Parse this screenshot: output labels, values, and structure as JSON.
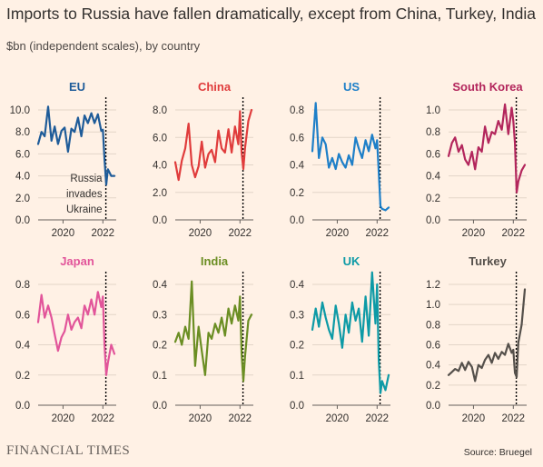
{
  "header": {
    "title": "Imports to Russia have fallen dramatically, except from China, Turkey, India",
    "subtitle": "$bn (independent scales), by country"
  },
  "footer": {
    "brand": "FINANCIAL TIMES",
    "source": "Source: Bruegel"
  },
  "chart_data": [
    {
      "type": "line",
      "title": "EU",
      "color": "#1f5c99",
      "yticks": [
        "0.0",
        "2.0",
        "4.0",
        "6.0",
        "8.0",
        "10.0"
      ],
      "ylim": [
        0,
        10
      ],
      "xticks": [
        "2020",
        "2022"
      ],
      "annotation": [
        "Russia",
        "invades",
        "Ukraine"
      ],
      "x": [
        2018.75,
        2018.92,
        2019.08,
        2019.25,
        2019.42,
        2019.58,
        2019.75,
        2019.92,
        2020.08,
        2020.25,
        2020.42,
        2020.58,
        2020.75,
        2020.92,
        2021.08,
        2021.25,
        2021.42,
        2021.58,
        2021.75,
        2021.92,
        2022.0,
        2022.08,
        2022.17,
        2022.25,
        2022.42,
        2022.58
      ],
      "values": [
        6.9,
        8.0,
        7.6,
        10.3,
        7.2,
        8.5,
        6.9,
        8.1,
        8.4,
        6.2,
        8.3,
        8.0,
        9.3,
        7.6,
        9.5,
        8.8,
        9.7,
        8.8,
        9.6,
        8.1,
        8.2,
        5.5,
        3.2,
        4.6,
        4.0,
        4.0
      ]
    },
    {
      "type": "line",
      "title": "China",
      "color": "#e03c3c",
      "yticks": [
        "0.0",
        "2.0",
        "4.0",
        "6.0",
        "8.0"
      ],
      "ylim": [
        0,
        8
      ],
      "xticks": [
        "2020",
        "2022"
      ],
      "x": [
        2018.75,
        2018.92,
        2019.08,
        2019.25,
        2019.42,
        2019.58,
        2019.75,
        2019.92,
        2020.08,
        2020.25,
        2020.42,
        2020.58,
        2020.75,
        2020.92,
        2021.08,
        2021.25,
        2021.42,
        2021.58,
        2021.75,
        2021.92,
        2022.0,
        2022.08,
        2022.17,
        2022.25,
        2022.42,
        2022.58
      ],
      "values": [
        4.2,
        2.9,
        4.3,
        5.2,
        7.0,
        4.0,
        3.1,
        3.9,
        5.7,
        3.8,
        4.8,
        5.1,
        4.2,
        6.5,
        5.2,
        4.9,
        6.6,
        4.9,
        6.8,
        5.5,
        7.9,
        4.9,
        3.7,
        5.2,
        7.2,
        8.0
      ]
    },
    {
      "type": "line",
      "title": "US",
      "color": "#1e7fc8",
      "yticks": [
        "0.0",
        "0.2",
        "0.4",
        "0.6",
        "0.8"
      ],
      "ylim": [
        0,
        0.8
      ],
      "xticks": [
        "2020",
        "2022"
      ],
      "x": [
        2018.75,
        2018.92,
        2019.08,
        2019.25,
        2019.42,
        2019.58,
        2019.75,
        2019.92,
        2020.08,
        2020.25,
        2020.42,
        2020.58,
        2020.75,
        2020.92,
        2021.08,
        2021.25,
        2021.42,
        2021.58,
        2021.75,
        2021.92,
        2022.0,
        2022.08,
        2022.17,
        2022.25,
        2022.42,
        2022.58
      ],
      "values": [
        0.5,
        0.85,
        0.45,
        0.6,
        0.55,
        0.38,
        0.45,
        0.37,
        0.48,
        0.42,
        0.38,
        0.47,
        0.4,
        0.6,
        0.52,
        0.45,
        0.58,
        0.5,
        0.62,
        0.52,
        0.58,
        0.35,
        0.1,
        0.08,
        0.07,
        0.09
      ]
    },
    {
      "type": "line",
      "title": "South Korea",
      "color": "#b3265c",
      "yticks": [
        "0.0",
        "0.2",
        "0.4",
        "0.6",
        "0.8",
        "1.0"
      ],
      "ylim": [
        0,
        1.0
      ],
      "xticks": [
        "2020",
        "2022"
      ],
      "x": [
        2018.75,
        2018.92,
        2019.08,
        2019.25,
        2019.42,
        2019.58,
        2019.75,
        2019.92,
        2020.08,
        2020.25,
        2020.42,
        2020.58,
        2020.75,
        2020.92,
        2021.08,
        2021.25,
        2021.42,
        2021.58,
        2021.75,
        2021.92,
        2022.0,
        2022.08,
        2022.17,
        2022.25,
        2022.42,
        2022.58
      ],
      "values": [
        0.58,
        0.7,
        0.75,
        0.62,
        0.68,
        0.55,
        0.5,
        0.62,
        0.46,
        0.66,
        0.62,
        0.85,
        0.7,
        0.8,
        0.78,
        0.9,
        0.82,
        1.05,
        0.78,
        1.02,
        0.9,
        0.7,
        0.25,
        0.35,
        0.45,
        0.5
      ]
    },
    {
      "type": "line",
      "title": "Japan",
      "color": "#e2559a",
      "yticks": [
        "0.0",
        "0.2",
        "0.4",
        "0.6",
        "0.8"
      ],
      "ylim": [
        0,
        0.8
      ],
      "xticks": [
        "2020",
        "2022"
      ],
      "x": [
        2018.75,
        2018.92,
        2019.08,
        2019.25,
        2019.42,
        2019.58,
        2019.75,
        2019.92,
        2020.08,
        2020.25,
        2020.42,
        2020.58,
        2020.75,
        2020.92,
        2021.08,
        2021.25,
        2021.42,
        2021.58,
        2021.75,
        2021.92,
        2022.0,
        2022.08,
        2022.17,
        2022.25,
        2022.42,
        2022.58
      ],
      "values": [
        0.55,
        0.73,
        0.58,
        0.66,
        0.58,
        0.47,
        0.36,
        0.45,
        0.49,
        0.6,
        0.5,
        0.55,
        0.58,
        0.51,
        0.66,
        0.6,
        0.7,
        0.6,
        0.75,
        0.65,
        0.72,
        0.4,
        0.2,
        0.28,
        0.4,
        0.34
      ]
    },
    {
      "type": "line",
      "title": "India",
      "color": "#6b8e23",
      "yticks": [
        "0.0",
        "0.1",
        "0.2",
        "0.3",
        "0.4"
      ],
      "ylim": [
        0,
        0.4
      ],
      "xticks": [
        "2020",
        "2022"
      ],
      "x": [
        2018.75,
        2018.92,
        2019.08,
        2019.25,
        2019.42,
        2019.58,
        2019.75,
        2019.92,
        2020.08,
        2020.25,
        2020.42,
        2020.58,
        2020.75,
        2020.92,
        2021.08,
        2021.25,
        2021.42,
        2021.58,
        2021.75,
        2021.92,
        2022.0,
        2022.08,
        2022.17,
        2022.25,
        2022.42,
        2022.58
      ],
      "values": [
        0.21,
        0.24,
        0.2,
        0.26,
        0.22,
        0.41,
        0.13,
        0.26,
        0.18,
        0.1,
        0.24,
        0.22,
        0.27,
        0.24,
        0.29,
        0.23,
        0.32,
        0.27,
        0.33,
        0.28,
        0.36,
        0.17,
        0.08,
        0.16,
        0.28,
        0.3
      ]
    },
    {
      "type": "line",
      "title": "UK",
      "color": "#0d9aa6",
      "yticks": [
        "0.0",
        "0.1",
        "0.2",
        "0.3",
        "0.4"
      ],
      "ylim": [
        0,
        0.4
      ],
      "xticks": [
        "2020",
        "2022"
      ],
      "x": [
        2018.75,
        2018.92,
        2019.08,
        2019.25,
        2019.42,
        2019.58,
        2019.75,
        2019.92,
        2020.08,
        2020.25,
        2020.42,
        2020.58,
        2020.75,
        2020.92,
        2021.08,
        2021.25,
        2021.42,
        2021.58,
        2021.75,
        2021.92,
        2022.0,
        2022.08,
        2022.17,
        2022.25,
        2022.42,
        2022.58
      ],
      "values": [
        0.25,
        0.32,
        0.26,
        0.34,
        0.29,
        0.25,
        0.22,
        0.33,
        0.27,
        0.19,
        0.3,
        0.24,
        0.34,
        0.28,
        0.32,
        0.21,
        0.36,
        0.23,
        0.44,
        0.27,
        0.4,
        0.15,
        0.04,
        0.08,
        0.05,
        0.1
      ]
    },
    {
      "type": "line",
      "title": "Turkey",
      "color": "#55504b",
      "yticks": [
        "0.0",
        "0.2",
        "0.4",
        "0.6",
        "0.8",
        "1.0",
        "1.2"
      ],
      "ylim": [
        0,
        1.2
      ],
      "xticks": [
        "2020",
        "2022"
      ],
      "x": [
        2018.75,
        2018.92,
        2019.08,
        2019.25,
        2019.42,
        2019.58,
        2019.75,
        2019.92,
        2020.08,
        2020.25,
        2020.42,
        2020.58,
        2020.75,
        2020.92,
        2021.08,
        2021.25,
        2021.42,
        2021.58,
        2021.75,
        2021.92,
        2022.0,
        2022.08,
        2022.17,
        2022.25,
        2022.42,
        2022.58
      ],
      "values": [
        0.3,
        0.33,
        0.36,
        0.34,
        0.42,
        0.35,
        0.43,
        0.38,
        0.24,
        0.4,
        0.37,
        0.45,
        0.5,
        0.42,
        0.52,
        0.46,
        0.53,
        0.5,
        0.61,
        0.52,
        0.55,
        0.32,
        0.28,
        0.62,
        0.8,
        1.15
      ]
    }
  ]
}
